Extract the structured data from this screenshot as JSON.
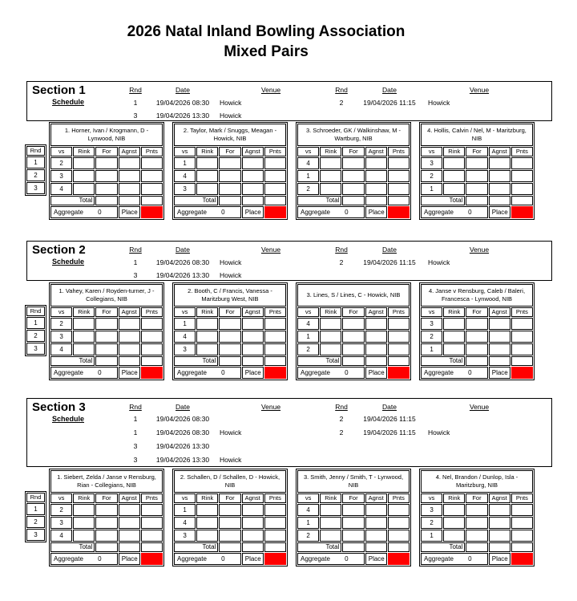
{
  "title": {
    "line1": "2026 Natal Inland Bowling Association",
    "line2": "Mixed Pairs"
  },
  "schedule_label": "Schedule",
  "schedule_headers": {
    "rnd": "Rnd",
    "date": "Date",
    "venue": "Venue"
  },
  "table_headers": [
    "vs",
    "Rink",
    "For",
    "Agnst",
    "Pnts"
  ],
  "rnd_column": {
    "header": "Rnd",
    "rounds": [
      "1",
      "2",
      "3"
    ]
  },
  "labels": {
    "total": "Total",
    "aggregate": "Aggregate",
    "place": "Place"
  },
  "colors": {
    "place_fill": "#ff0000",
    "border": "#000000"
  },
  "sections": [
    {
      "name": "Section 1",
      "schedule_rows": [
        {
          "rnd": "1",
          "date": "19/04/2026 08:30",
          "venue": "Howick",
          "rnd2": "2",
          "date2": "19/04/2026 11:15",
          "venue2": "Howick"
        },
        {
          "rnd": "3",
          "date": "19/04/2026 13:30",
          "venue": "Howick",
          "rnd2": "",
          "date2": "",
          "venue2": ""
        }
      ],
      "teams": [
        {
          "title": "1. Horner, Ivan / Krogmann, D - Lynwood, NIB",
          "vs": [
            "2",
            "3",
            "4"
          ],
          "aggregate": "0"
        },
        {
          "title": "2. Taylor, Mark / Snuggs, Meagan - Howick, NIB",
          "vs": [
            "1",
            "4",
            "3"
          ],
          "aggregate": "0"
        },
        {
          "title": "3. Schroeder, GK / Walkinshaw, M - Wartburg, NIB",
          "vs": [
            "4",
            "1",
            "2"
          ],
          "aggregate": "0"
        },
        {
          "title": "4. Hollis, Calvin / Nel, M - Maritzburg, NIB",
          "vs": [
            "3",
            "2",
            "1"
          ],
          "aggregate": "0"
        }
      ]
    },
    {
      "name": "Section 2",
      "schedule_rows": [
        {
          "rnd": "1",
          "date": "19/04/2026 08:30",
          "venue": "Howick",
          "rnd2": "2",
          "date2": "19/04/2026 11:15",
          "ven2": "",
          "venue2": "Howick"
        },
        {
          "rnd": "3",
          "date": "19/04/2026 13:30",
          "venue": "Howick",
          "rnd2": "",
          "date2": "",
          "venue2": ""
        }
      ],
      "teams": [
        {
          "title": "1. Vahey, Karen / Royden-turner, J - Collegians, NIB",
          "vs": [
            "2",
            "3",
            "4"
          ],
          "aggregate": "0"
        },
        {
          "title": "2. Booth, C / Francis, Vanessa - Maritzburg West, NIB",
          "vs": [
            "1",
            "4",
            "3"
          ],
          "aggregate": "0"
        },
        {
          "title": "3. Lines, S / Lines, C - Howick, NIB",
          "vs": [
            "4",
            "1",
            "2"
          ],
          "aggregate": "0"
        },
        {
          "title": "4. Janse v Rensburg, Caleb / Baleri, Francesca - Lynwood, NIB",
          "vs": [
            "3",
            "2",
            "1"
          ],
          "aggregate": "0"
        }
      ]
    },
    {
      "name": "Section 3",
      "schedule_rows": [
        {
          "rnd": "1",
          "date": "19/04/2026 08:30",
          "venue": "",
          "rnd2": "2",
          "date2": "19/04/2026 11:15",
          "venue2": ""
        },
        {
          "rnd": "1",
          "date": "19/04/2026 08:30",
          "venue": "Howick",
          "rnd2": "2",
          "date2": "19/04/2026 11:15",
          "venue2": "Howick"
        },
        {
          "rnd": "3",
          "date": "19/04/2026 13:30",
          "venue": "",
          "rnd2": "",
          "date2": "",
          "venue2": ""
        },
        {
          "rnd": "3",
          "date": "19/04/2026 13:30",
          "venue": "Howick",
          "rnd2": "",
          "date2": "",
          "venue2": ""
        }
      ],
      "teams": [
        {
          "title": "1. Siebert, Zelda / Janse v Rensburg, Rian - Collegians, NIB",
          "vs": [
            "2",
            "3",
            "4"
          ],
          "aggregate": "0"
        },
        {
          "title": "2. Schallen, D / Schallen, D - Howick, NIB",
          "vs": [
            "1",
            "4",
            "3"
          ],
          "aggregate": "0"
        },
        {
          "title": "3. Smith, Jenny / Smith, T - Lynwood, NIB",
          "vs": [
            "4",
            "1",
            "2"
          ],
          "aggregate": "0"
        },
        {
          "title": "4. Nel, Brandon / Dunlop, Isla - Maritzburg, NIB",
          "vs": [
            "3",
            "2",
            "1"
          ],
          "aggregate": "0"
        }
      ]
    }
  ]
}
